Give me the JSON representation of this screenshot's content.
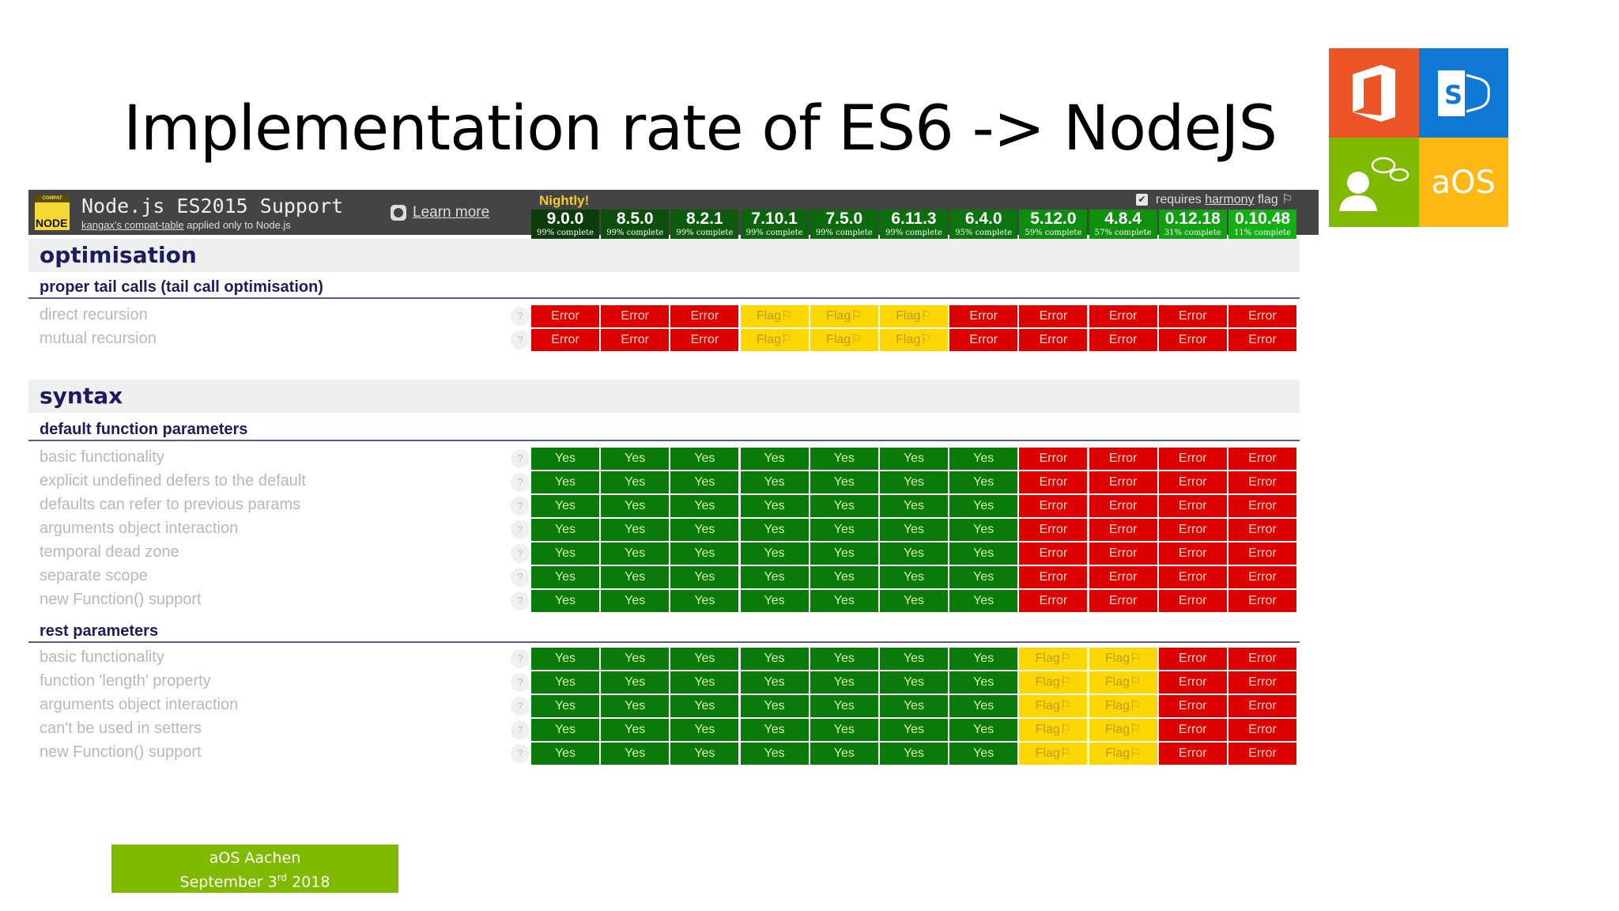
{
  "slide": {
    "title": "Implementation rate of ES6 -> NodeJS"
  },
  "logo": {
    "tile_text": "aOS",
    "colors": {
      "office": "#eb5424",
      "sharepoint": "#0f78d4",
      "community": "#7fba00",
      "aos": "#fdb813"
    }
  },
  "header": {
    "badge_top": "COMPAT",
    "badge_bottom": "NODE",
    "title": "Node.js ES2015 Support",
    "subtitle_link": "kangax's compat-table",
    "subtitle_rest": " applied only to Node.js",
    "learn_more": "Learn more",
    "nightly": "Nightly!",
    "harmony_prefix": "requires ",
    "harmony_link": "harmony",
    "harmony_suffix": " flag ⚐",
    "harmony_checked": "✔"
  },
  "versions": [
    {
      "version": "9.0.0",
      "complete": "99% complete",
      "color": "#0b3d0b"
    },
    {
      "version": "8.5.0",
      "complete": "99% complete",
      "color": "#0c4f0c"
    },
    {
      "version": "8.2.1",
      "complete": "99% complete",
      "color": "#0c5a0c"
    },
    {
      "version": "7.10.1",
      "complete": "99% complete",
      "color": "#0c640c"
    },
    {
      "version": "7.5.0",
      "complete": "99% complete",
      "color": "#0c690c"
    },
    {
      "version": "6.11.3",
      "complete": "99% complete",
      "color": "#0c6e0c"
    },
    {
      "version": "6.4.0",
      "complete": "95% complete",
      "color": "#0c740c"
    },
    {
      "version": "5.12.0",
      "complete": "59% complete",
      "color": "#0d8c0d"
    },
    {
      "version": "4.8.4",
      "complete": "57% complete",
      "color": "#0e920e"
    },
    {
      "version": "0.12.18",
      "complete": "31% complete",
      "color": "#10a010"
    },
    {
      "version": "0.10.48",
      "complete": "11% complete",
      "color": "#12b012"
    }
  ],
  "labels": {
    "yes": "Yes",
    "error": "Error",
    "flag": "Flag⚐",
    "help": "?"
  },
  "sections": [
    {
      "category": "optimisation",
      "groups": [
        {
          "name": "proper tail calls (tail call optimisation)",
          "rows": [
            {
              "label": "direct recursion",
              "cells": [
                "error",
                "error",
                "error",
                "flag",
                "flag",
                "flag",
                "error",
                "error",
                "error",
                "error",
                "error"
              ]
            },
            {
              "label": "mutual recursion",
              "cells": [
                "error",
                "error",
                "error",
                "flag",
                "flag",
                "flag",
                "error",
                "error",
                "error",
                "error",
                "error"
              ]
            }
          ]
        }
      ]
    },
    {
      "category": "syntax",
      "groups": [
        {
          "name": "default function parameters",
          "rows": [
            {
              "label": "basic functionality",
              "cells": [
                "yes",
                "yes",
                "yes",
                "yes",
                "yes",
                "yes",
                "yes",
                "error",
                "error",
                "error",
                "error"
              ]
            },
            {
              "label": "explicit undefined defers to the default",
              "cells": [
                "yes",
                "yes",
                "yes",
                "yes",
                "yes",
                "yes",
                "yes",
                "error",
                "error",
                "error",
                "error"
              ]
            },
            {
              "label": "defaults can refer to previous params",
              "cells": [
                "yes",
                "yes",
                "yes",
                "yes",
                "yes",
                "yes",
                "yes",
                "error",
                "error",
                "error",
                "error"
              ]
            },
            {
              "label": "arguments object interaction",
              "cells": [
                "yes",
                "yes",
                "yes",
                "yes",
                "yes",
                "yes",
                "yes",
                "error",
                "error",
                "error",
                "error"
              ]
            },
            {
              "label": "temporal dead zone",
              "cells": [
                "yes",
                "yes",
                "yes",
                "yes",
                "yes",
                "yes",
                "yes",
                "error",
                "error",
                "error",
                "error"
              ]
            },
            {
              "label": "separate scope",
              "cells": [
                "yes",
                "yes",
                "yes",
                "yes",
                "yes",
                "yes",
                "yes",
                "error",
                "error",
                "error",
                "error"
              ]
            },
            {
              "label": "new Function() support",
              "cells": [
                "yes",
                "yes",
                "yes",
                "yes",
                "yes",
                "yes",
                "yes",
                "error",
                "error",
                "error",
                "error"
              ]
            }
          ]
        },
        {
          "name": "rest parameters",
          "rows": [
            {
              "label": "basic functionality",
              "cells": [
                "yes",
                "yes",
                "yes",
                "yes",
                "yes",
                "yes",
                "yes",
                "flag",
                "flag",
                "error",
                "error"
              ]
            },
            {
              "label": "function 'length' property",
              "cells": [
                "yes",
                "yes",
                "yes",
                "yes",
                "yes",
                "yes",
                "yes",
                "flag",
                "flag",
                "error",
                "error"
              ]
            },
            {
              "label": "arguments object interaction",
              "cells": [
                "yes",
                "yes",
                "yes",
                "yes",
                "yes",
                "yes",
                "yes",
                "flag",
                "flag",
                "error",
                "error"
              ]
            },
            {
              "label": "can't be used in setters",
              "cells": [
                "yes",
                "yes",
                "yes",
                "yes",
                "yes",
                "yes",
                "yes",
                "flag",
                "flag",
                "error",
                "error"
              ]
            },
            {
              "label": "new Function() support",
              "cells": [
                "yes",
                "yes",
                "yes",
                "yes",
                "yes",
                "yes",
                "yes",
                "flag",
                "flag",
                "error",
                "error"
              ]
            }
          ]
        }
      ]
    }
  ],
  "footer": {
    "line1": "aOS Aachen",
    "line2_pre": "September 3",
    "line2_sup": "rd",
    "line2_post": " 2018"
  }
}
